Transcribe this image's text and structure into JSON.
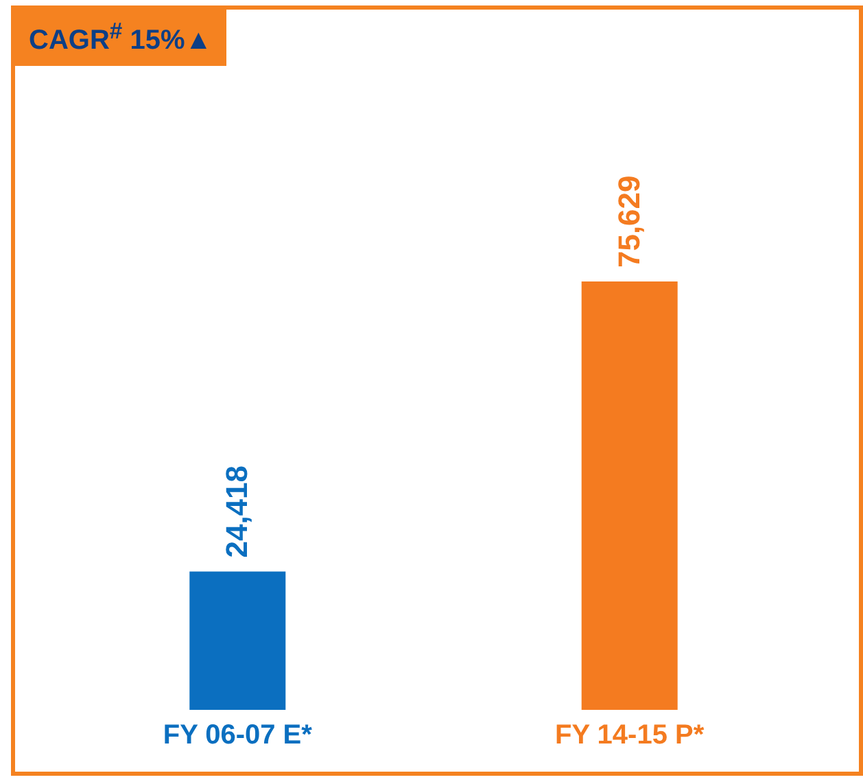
{
  "chart_data": {
    "type": "bar",
    "categories": [
      "FY 06-07 E*",
      "FY 14-15 P*"
    ],
    "values": [
      24418,
      75629
    ],
    "colors": [
      "#0b6fc0",
      "#f47b20"
    ],
    "value_labels": [
      "24,418",
      "75,629"
    ],
    "annotations": [
      "CAGR$^{#}$ 15%▲"
    ]
  }
}
